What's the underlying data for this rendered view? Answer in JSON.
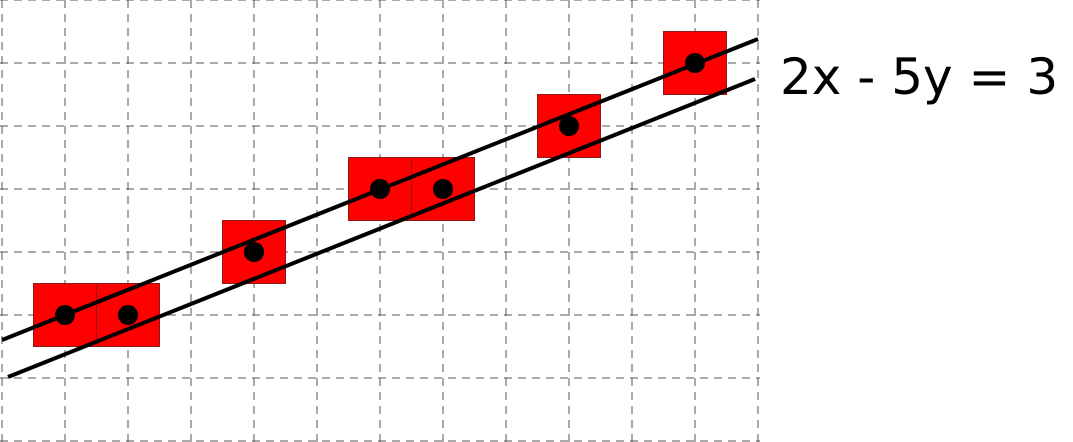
{
  "equation": "2x - 5y = 3",
  "colors": {
    "pixel_fill": "#ff0000",
    "pixel_stroke": "#8b1a1a",
    "grid": "#555555",
    "line": "#000000",
    "point": "#000000"
  },
  "grid": {
    "cols": 12,
    "rows": 7,
    "style": "dashed"
  },
  "pixels": [
    {
      "col": 1,
      "row": 5
    },
    {
      "col": 2,
      "row": 5
    },
    {
      "col": 4,
      "row": 4
    },
    {
      "col": 6,
      "row": 3
    },
    {
      "col": 7,
      "row": 3
    },
    {
      "col": 9,
      "row": 2
    },
    {
      "col": 11,
      "row": 1
    }
  ]
}
